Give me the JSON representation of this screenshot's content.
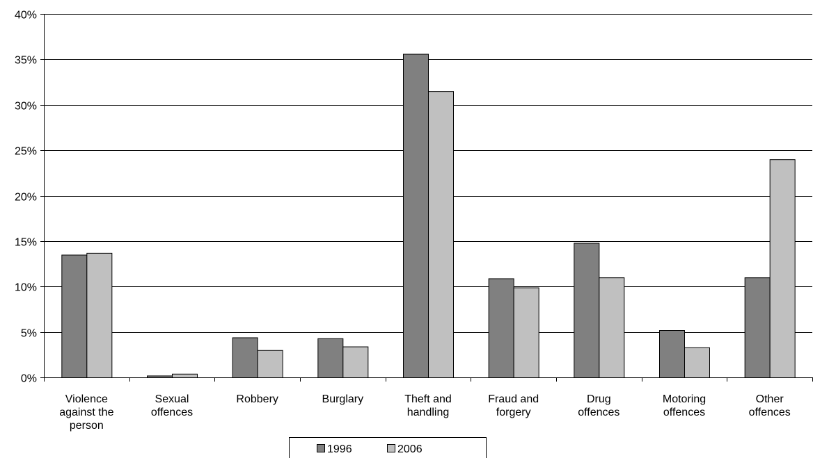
{
  "chart_data": {
    "type": "bar",
    "categories": [
      [
        "Violence",
        "against the",
        "person"
      ],
      [
        "Sexual",
        "offences"
      ],
      [
        "Robbery"
      ],
      [
        "Burglary"
      ],
      [
        "Theft and",
        "handling"
      ],
      [
        "Fraud and",
        "forgery"
      ],
      [
        "Drug",
        "offences"
      ],
      [
        "Motoring",
        "offences"
      ],
      [
        "Other",
        "offences"
      ]
    ],
    "series": [
      {
        "name": "1996",
        "color": "#808080",
        "values": [
          13.5,
          0.2,
          4.4,
          4.3,
          35.6,
          10.9,
          14.8,
          5.2,
          11.0
        ]
      },
      {
        "name": "2006",
        "color": "#c0c0c0",
        "values": [
          13.7,
          0.4,
          3.0,
          3.4,
          31.5,
          9.9,
          11.0,
          3.3,
          24.0
        ]
      }
    ],
    "ylim": [
      0,
      40
    ],
    "yticks": [
      0,
      5,
      10,
      15,
      20,
      25,
      30,
      35,
      40
    ],
    "ytick_suffix": "%",
    "grid": true,
    "legend_position": "bottom"
  }
}
